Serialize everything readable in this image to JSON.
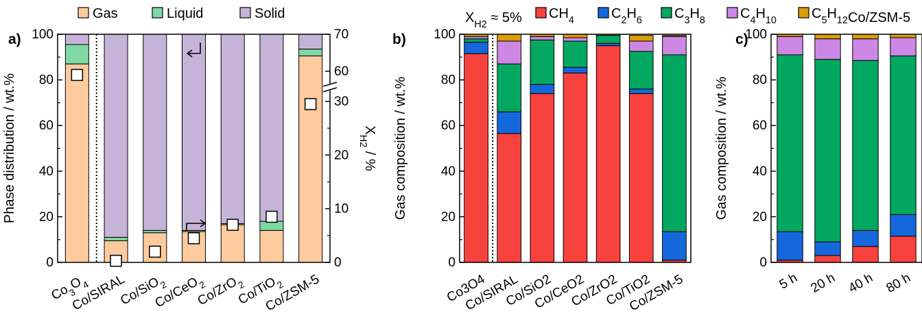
{
  "colors": {
    "gas": "#fdcb9d",
    "liquid": "#7fd9a4",
    "solid": "#c6b4d8",
    "CH4": "#f8423e",
    "C2H6": "#1567dc",
    "C3H8": "#03a860",
    "C4H10": "#cd88e6",
    "C5H12": "#dc9e06"
  },
  "chart_data": [
    {
      "panel": "a)",
      "type": "bar",
      "stacked": true,
      "categories": [
        "Co3O4",
        "Co/SIRAL",
        "Co/SiO2",
        "Co/CeO2",
        "Co/ZrO2",
        "Co/TiO2",
        "Co/ZSM-5"
      ],
      "category_labels": [
        {
          "base": "Co",
          "sub": "3",
          "post": "O",
          "sub2": "4"
        },
        {
          "base": "Co/SIRAL",
          "sub": "",
          "post": "",
          "sub2": ""
        },
        {
          "base": "Co/SiO",
          "sub": "2",
          "post": "",
          "sub2": ""
        },
        {
          "base": "Co/CeO",
          "sub": "2",
          "post": "",
          "sub2": ""
        },
        {
          "base": "Co/ZrO",
          "sub": "2",
          "post": "",
          "sub2": ""
        },
        {
          "base": "Co/TiO",
          "sub": "2",
          "post": "",
          "sub2": ""
        },
        {
          "base": "Co/ZSM-5",
          "sub": "",
          "post": "",
          "sub2": ""
        }
      ],
      "legend": [
        "Gas",
        "Liquid",
        "Solid"
      ],
      "series": [
        {
          "name": "Gas",
          "values": [
            87,
            9.5,
            13,
            13.5,
            16.5,
            14,
            90.5
          ]
        },
        {
          "name": "Liquid",
          "values": [
            8.5,
            1.5,
            1,
            0.5,
            0.5,
            4,
            3
          ]
        },
        {
          "name": "Solid",
          "values": [
            4.5,
            89,
            86,
            86,
            83,
            82,
            6.5
          ]
        }
      ],
      "ylabel": "Phase distribution / wt.%",
      "ylim": [
        0,
        100
      ],
      "yticks": [
        0,
        20,
        40,
        60,
        80,
        100
      ],
      "y2label": "X",
      "y2label_sub": "H",
      "y2label_sub2": "2",
      "y2label_post": " / %",
      "y2_broken_axis": true,
      "y2ticks": [
        0,
        10,
        20,
        30,
        60,
        70
      ],
      "conversion_markers": [
        59,
        0.3,
        2,
        4.5,
        7,
        8.5,
        29.5
      ]
    },
    {
      "panel": "b)",
      "type": "bar",
      "stacked": true,
      "annotation": {
        "base": "X",
        "sub": "H",
        "sub2": "2",
        "post": " ≈ 5%"
      },
      "categories": [
        "Co3O4",
        "Co/SIRAL",
        "Co/SiO2",
        "Co/CeO2",
        "Co/ZrO2",
        "Co/TiO2",
        "Co/ZSM-5"
      ],
      "series": [
        {
          "name": "CH4",
          "values": [
            91.5,
            56.5,
            74,
            83,
            95,
            74,
            1
          ]
        },
        {
          "name": "C2H6",
          "values": [
            5,
            9.5,
            4,
            2.5,
            1,
            2,
            12.5
          ]
        },
        {
          "name": "C3H8",
          "values": [
            1.5,
            21,
            19.5,
            11.5,
            3.5,
            16.5,
            77.5
          ]
        },
        {
          "name": "C4H10",
          "values": [
            1,
            10,
            1.5,
            1.5,
            0,
            4.5,
            8
          ]
        },
        {
          "name": "C5H12",
          "values": [
            1,
            3,
            1,
            1.5,
            0.5,
            2.5,
            0.5
          ]
        }
      ],
      "ylabel": "Gas composition / wt.%",
      "ylim": [
        0,
        100
      ],
      "yticks": [
        0,
        20,
        40,
        60,
        80,
        100
      ]
    },
    {
      "panel": "c)",
      "type": "bar",
      "stacked": true,
      "title": "Co/ZSM-5",
      "categories": [
        "5 h",
        "20 h",
        "40 h",
        "80 h"
      ],
      "series": [
        {
          "name": "CH4",
          "values": [
            1,
            3,
            7,
            11.5
          ]
        },
        {
          "name": "C2H6",
          "values": [
            12.5,
            6,
            7,
            9.5
          ]
        },
        {
          "name": "C3H8",
          "values": [
            77.5,
            80,
            74.5,
            69.5
          ]
        },
        {
          "name": "C4H10",
          "values": [
            8,
            9,
            9.5,
            8
          ]
        },
        {
          "name": "C5H12",
          "values": [
            1,
            2,
            2,
            1.5
          ]
        }
      ],
      "ylabel": "Gas composition / wt.%",
      "ylim": [
        0,
        100
      ],
      "yticks": [
        0,
        20,
        40,
        60,
        80,
        100
      ]
    }
  ],
  "legend_top_left": [
    {
      "key": "gas",
      "label": "Gas"
    },
    {
      "key": "liquid",
      "label": "Liquid"
    },
    {
      "key": "solid",
      "label": "Solid"
    }
  ],
  "legend_top_right": [
    {
      "key": "CH4",
      "base": "CH",
      "sub": "4"
    },
    {
      "key": "C2H6",
      "base": "C",
      "sub": "2",
      "mid": "H",
      "sub2": "6"
    },
    {
      "key": "C3H8",
      "base": "C",
      "sub": "3",
      "mid": "H",
      "sub2": "8"
    },
    {
      "key": "C4H10",
      "base": "C",
      "sub": "4",
      "mid": "H",
      "sub2": "10"
    },
    {
      "key": "C5H12",
      "base": "C",
      "sub": "5",
      "mid": "H",
      "sub2": "12"
    }
  ]
}
